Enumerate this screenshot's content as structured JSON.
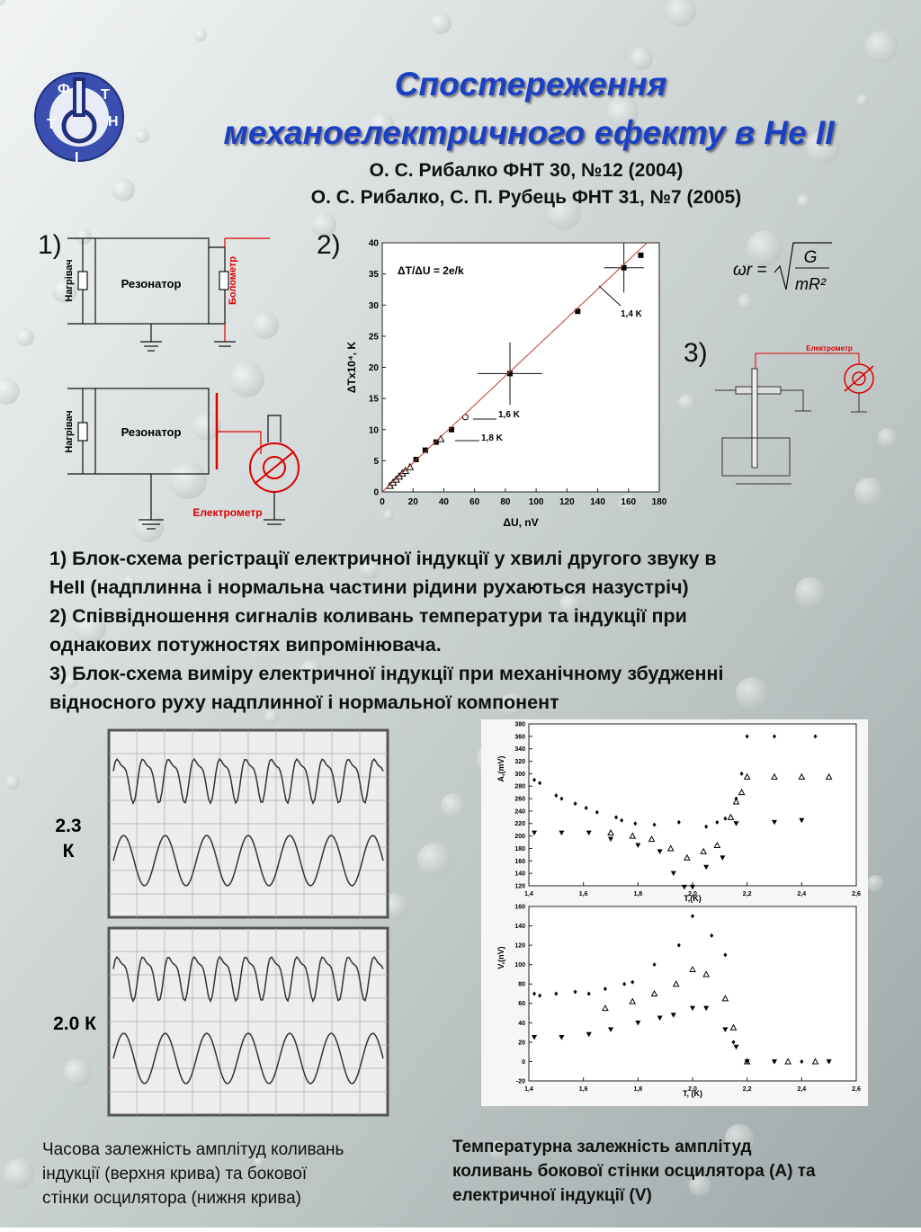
{
  "header": {
    "title": [
      "Спостереження",
      "механоелектричного ефекту в He II"
    ],
    "references": [
      "О. С. Рибалко ФНТ 30, №12 (2004)",
      "О. С. Рибалко, С. П. Рубець ФНТ 31, №7 (2005)"
    ],
    "logo_letters": [
      "Ф",
      "Т",
      "І",
      "Н",
      "Т"
    ]
  },
  "panel_labels": [
    "1)",
    "2)",
    "3)"
  ],
  "diagram1": {
    "heater": "Нагрівач",
    "resonator": "Резонатор",
    "bolometer": "Болометр",
    "electrometer": "Електрометр"
  },
  "diagram3": {
    "electrometer": "Електрометр",
    "formula": {
      "lhs": "ωr =",
      "numerator": "G",
      "denominator": "mR²"
    }
  },
  "chart_data": [
    {
      "type": "scatter",
      "xlabel": "ΔU, nV",
      "ylabel": "ΔTx10⁴, K",
      "annotations": [
        "ΔT/ΔU = 2e/k",
        "1,4 K",
        "1,6 K",
        "1,8 K"
      ],
      "xlim": [
        0,
        180
      ],
      "xticks": [
        0,
        20,
        40,
        60,
        80,
        100,
        120,
        140,
        160,
        180
      ],
      "ylim": [
        0,
        40
      ],
      "yticks": [
        0,
        5,
        10,
        15,
        20,
        25,
        30,
        35,
        40
      ],
      "series": [
        {
          "type": "scatter",
          "marker": "square",
          "color": "#000000",
          "x": [
            22,
            28,
            35,
            45,
            83,
            127,
            157,
            168
          ],
          "values": [
            5.2,
            6.7,
            8,
            10,
            19,
            29,
            36,
            38
          ],
          "xerr": [
            null,
            null,
            null,
            null,
            21,
            null,
            13,
            null
          ],
          "yerr": [
            null,
            null,
            null,
            null,
            5,
            null,
            4,
            null
          ]
        },
        {
          "type": "scatter",
          "marker": "triangle",
          "color": "#000000",
          "x": [
            5,
            7,
            9,
            11,
            13,
            15,
            18,
            38
          ],
          "values": [
            1,
            1.5,
            2,
            2.5,
            3,
            3.4,
            4,
            8.5
          ]
        },
        {
          "type": "scatter",
          "marker": "circle",
          "color": "#000000",
          "x": [
            54
          ],
          "values": [
            12
          ]
        },
        {
          "type": "line",
          "color": "#c0392b",
          "x": [
            0,
            172
          ],
          "values": [
            0,
            40
          ]
        }
      ]
    },
    {
      "type": "scatter",
      "xlabel": "T,(K)",
      "ylabel": "A,(mV)",
      "xlim": [
        1.4,
        2.6
      ],
      "xticks": [
        {
          "value": 1.4,
          "label": "1,4"
        },
        {
          "value": 1.6,
          "label": "1,6"
        },
        {
          "value": 1.8,
          "label": "1,8"
        },
        {
          "value": 2.0,
          "label": "2,0"
        },
        {
          "value": 2.2,
          "label": "2,2"
        },
        {
          "value": 2.4,
          "label": "2,4"
        },
        {
          "value": 2.6,
          "label": "2,6"
        }
      ],
      "ylim": [
        120,
        380
      ],
      "yticks": [
        120,
        140,
        160,
        180,
        200,
        220,
        240,
        260,
        280,
        300,
        320,
        340,
        360,
        380
      ],
      "series": [
        {
          "type": "scatter",
          "marker": "diamond",
          "color": "#000000",
          "x": [
            1.42,
            1.44,
            1.5,
            1.52,
            1.57,
            1.61,
            1.65,
            1.72,
            1.74,
            1.79,
            1.86,
            1.95,
            2.05,
            2.09,
            2.12,
            2.16,
            2.18,
            2.2,
            2.3,
            2.45
          ],
          "values": [
            290,
            285,
            265,
            260,
            252,
            245,
            238,
            230,
            225,
            220,
            218,
            222,
            215,
            222,
            228,
            260,
            300,
            360,
            360,
            360
          ]
        },
        {
          "type": "scatter",
          "marker": "triangle",
          "color": "#000000",
          "x": [
            1.7,
            1.78,
            1.85,
            1.92,
            1.98,
            2.04,
            2.09,
            2.14,
            2.16,
            2.18,
            2.2,
            2.3,
            2.4,
            2.5
          ],
          "values": [
            205,
            200,
            195,
            180,
            165,
            175,
            185,
            230,
            255,
            270,
            295,
            295,
            295,
            295
          ]
        },
        {
          "type": "scatter",
          "marker": "triangle-down",
          "color": "#000000",
          "x": [
            1.42,
            1.52,
            1.62,
            1.7,
            1.8,
            1.88,
            1.93,
            1.97,
            2.0,
            2.05,
            2.11,
            2.16,
            2.3,
            2.4
          ],
          "values": [
            205,
            205,
            205,
            195,
            185,
            175,
            140,
            118,
            118,
            150,
            165,
            220,
            222,
            225
          ]
        }
      ]
    },
    {
      "type": "scatter",
      "xlabel": "T, (K)",
      "ylabel": "V,(nV)",
      "xlim": [
        1.4,
        2.6
      ],
      "xticks": [
        {
          "value": 1.4,
          "label": "1,4"
        },
        {
          "value": 1.6,
          "label": "1,6"
        },
        {
          "value": 1.8,
          "label": "1,8"
        },
        {
          "value": 2.0,
          "label": "2,0"
        },
        {
          "value": 2.2,
          "label": "2,2"
        },
        {
          "value": 2.4,
          "label": "2,4"
        },
        {
          "value": 2.6,
          "label": "2,6"
        }
      ],
      "ylim": [
        -20,
        160
      ],
      "yticks": [
        -20,
        0,
        20,
        40,
        60,
        80,
        100,
        120,
        140,
        160
      ],
      "series": [
        {
          "type": "scatter",
          "marker": "diamond",
          "color": "#000000",
          "x": [
            1.42,
            1.44,
            1.5,
            1.57,
            1.62,
            1.68,
            1.75,
            1.78,
            1.86,
            1.95,
            2.0,
            2.07,
            2.12,
            2.15,
            2.2,
            2.3,
            2.4,
            2.5
          ],
          "values": [
            70,
            68,
            70,
            72,
            70,
            75,
            80,
            82,
            100,
            120,
            150,
            130,
            110,
            20,
            0,
            0,
            0,
            0
          ]
        },
        {
          "type": "scatter",
          "marker": "triangle",
          "color": "#000000",
          "x": [
            1.68,
            1.78,
            1.86,
            1.94,
            2.0,
            2.05,
            2.12,
            2.15,
            2.2,
            2.35,
            2.45
          ],
          "values": [
            55,
            62,
            70,
            80,
            95,
            90,
            65,
            35,
            0,
            0,
            0
          ]
        },
        {
          "type": "scatter",
          "marker": "triangle-down",
          "color": "#000000",
          "x": [
            1.42,
            1.52,
            1.62,
            1.7,
            1.8,
            1.88,
            1.93,
            2.0,
            2.05,
            2.12,
            2.16,
            2.2,
            2.3,
            2.5
          ],
          "values": [
            25,
            25,
            28,
            33,
            40,
            45,
            48,
            55,
            55,
            33,
            15,
            0,
            0,
            0
          ]
        }
      ]
    }
  ],
  "captions": [
    [
      "1) Блок-схема регістрації електричної індукції у хвилі другого звуку в",
      "HeII (надплинна і нормальна частини рідини рухаються назустріч)"
    ],
    [
      "2) Співвідношення сигналів коливань температури та індукції при",
      "однакових потужностях випромінювача."
    ],
    [
      "3) Блок-схема виміру електричної індукції при механічному збудженні",
      "відносного руху надплинної і нормальної компонент"
    ]
  ],
  "oscillograms": {
    "labels": [
      [
        "2.3",
        "К"
      ],
      [
        "2.0 К"
      ]
    ]
  },
  "bottom_captions": [
    [
      "Часова залежність амплітуд коливань",
      "індукції (верхня крива) та бокової",
      "стінки осцилятора (нижня крива)"
    ],
    [
      "Температурна залежність амплітуд",
      "коливань бокової стінки осцилятора (А) та",
      "електричної індукції (V)"
    ]
  ]
}
